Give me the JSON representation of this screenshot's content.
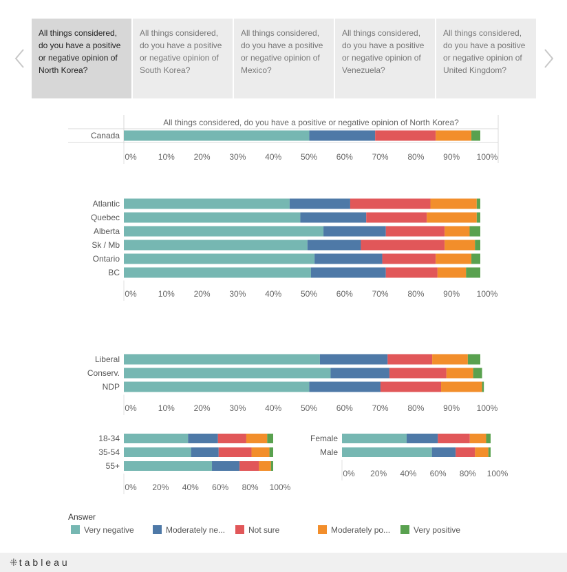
{
  "tabs": [
    {
      "label": "All things considered, do you have a positive or negative opinion of North Korea?",
      "active": true
    },
    {
      "label": "All things considered, do you have a positive or negative opinion of South Korea?",
      "active": false
    },
    {
      "label": "All things considered, do you have a positive or negative opinion of Mexico?",
      "active": false
    },
    {
      "label": "All things considered, do you have a positive or negative opinion of Venezuela?",
      "active": false
    },
    {
      "label": "All things considered, do you have a positive or negative opinion of United Kingdom?",
      "active": false
    }
  ],
  "nav": {
    "prev_icon": "chevron-left-icon",
    "next_icon": "chevron-right-icon"
  },
  "colors": {
    "Very negative": "#76b7b2",
    "Moderately negative": "#4e79a7",
    "Not sure": "#e15759",
    "Moderately positive": "#f28e2b",
    "Very positive": "#59a14f"
  },
  "chart_data": [
    {
      "type": "bar",
      "orientation": "horizontal",
      "stacked": true,
      "title": "All things considered, do you have a positive or negative opinion of North Korea?",
      "categories": [
        "Canada"
      ],
      "series": [
        {
          "name": "Very negative",
          "values": [
            52
          ]
        },
        {
          "name": "Moderately negative",
          "values": [
            18.5
          ]
        },
        {
          "name": "Not sure",
          "values": [
            17
          ]
        },
        {
          "name": "Moderately positive",
          "values": [
            10
          ]
        },
        {
          "name": "Very positive",
          "values": [
            2.5
          ]
        }
      ],
      "xticks": [
        "0%",
        "10%",
        "20%",
        "30%",
        "40%",
        "50%",
        "60%",
        "70%",
        "80%",
        "90%",
        "100%"
      ],
      "xlim": [
        0,
        100
      ]
    },
    {
      "type": "bar",
      "orientation": "horizontal",
      "stacked": true,
      "categories": [
        "Atlantic",
        "Quebec",
        "Alberta",
        "Sk / Mb",
        "Ontario",
        "BC"
      ],
      "series": [
        {
          "name": "Very negative",
          "values": [
            46.5,
            49.5,
            56,
            51.5,
            53.5,
            52.5
          ]
        },
        {
          "name": "Moderately negative",
          "values": [
            17,
            18.5,
            17.5,
            15,
            19,
            21
          ]
        },
        {
          "name": "Not sure",
          "values": [
            22.5,
            17,
            16.5,
            23.5,
            15,
            14.5
          ]
        },
        {
          "name": "Moderately positive",
          "values": [
            13,
            14,
            7,
            8.5,
            10,
            8
          ]
        },
        {
          "name": "Very positive",
          "values": [
            1,
            1,
            3,
            1.5,
            2.5,
            4
          ]
        }
      ],
      "xticks": [
        "0%",
        "10%",
        "20%",
        "30%",
        "40%",
        "50%",
        "60%",
        "70%",
        "80%",
        "90%",
        "100%"
      ],
      "xlim": [
        0,
        100
      ]
    },
    {
      "type": "bar",
      "orientation": "horizontal",
      "stacked": true,
      "categories": [
        "Liberal",
        "Conserv.",
        "NDP"
      ],
      "series": [
        {
          "name": "Very negative",
          "values": [
            55,
            58,
            52
          ]
        },
        {
          "name": "Moderately negative",
          "values": [
            19,
            16.5,
            20
          ]
        },
        {
          "name": "Not sure",
          "values": [
            12.5,
            16,
            17
          ]
        },
        {
          "name": "Moderately positive",
          "values": [
            10,
            7.5,
            11.5
          ]
        },
        {
          "name": "Very positive",
          "values": [
            3.5,
            2.5,
            0.5
          ]
        }
      ],
      "xticks": [
        "0%",
        "10%",
        "20%",
        "30%",
        "40%",
        "50%",
        "60%",
        "70%",
        "80%",
        "90%",
        "100%"
      ],
      "xlim": [
        0,
        100
      ]
    },
    {
      "type": "bar",
      "orientation": "horizontal",
      "stacked": true,
      "categories": [
        "18-34",
        "35-54",
        "55+"
      ],
      "series": [
        {
          "name": "Very negative",
          "values": [
            43,
            45,
            59
          ]
        },
        {
          "name": "Moderately negative",
          "values": [
            20,
            18.5,
            18.5
          ]
        },
        {
          "name": "Not sure",
          "values": [
            19,
            22,
            13
          ]
        },
        {
          "name": "Moderately positive",
          "values": [
            14,
            12,
            8
          ]
        },
        {
          "name": "Very positive",
          "values": [
            4,
            2.5,
            1.5
          ]
        }
      ],
      "xticks": [
        "0%",
        "20%",
        "40%",
        "60%",
        "80%",
        "100%"
      ],
      "xlim": [
        0,
        100
      ]
    },
    {
      "type": "bar",
      "orientation": "horizontal",
      "stacked": true,
      "categories": [
        "Female",
        "Male"
      ],
      "series": [
        {
          "name": "Very negative",
          "values": [
            43.5,
            60.5
          ]
        },
        {
          "name": "Moderately negative",
          "values": [
            21,
            16
          ]
        },
        {
          "name": "Not sure",
          "values": [
            21.5,
            13
          ]
        },
        {
          "name": "Moderately positive",
          "values": [
            11,
            9
          ]
        },
        {
          "name": "Very positive",
          "values": [
            3,
            1.5
          ]
        }
      ],
      "xticks": [
        "0%",
        "20%",
        "40%",
        "60%",
        "80%",
        "100%"
      ],
      "xlim": [
        0,
        100
      ]
    }
  ],
  "legend": {
    "title": "Answer",
    "items": [
      {
        "label": "Very negative",
        "color": "#76b7b2"
      },
      {
        "label": "Moderately ne...",
        "color": "#4e79a7"
      },
      {
        "label": "Not sure",
        "color": "#e15759"
      },
      {
        "label": "Moderately po...",
        "color": "#f28e2b"
      },
      {
        "label": "Very positive",
        "color": "#59a14f"
      }
    ]
  },
  "footer": {
    "brand": "tableau"
  }
}
